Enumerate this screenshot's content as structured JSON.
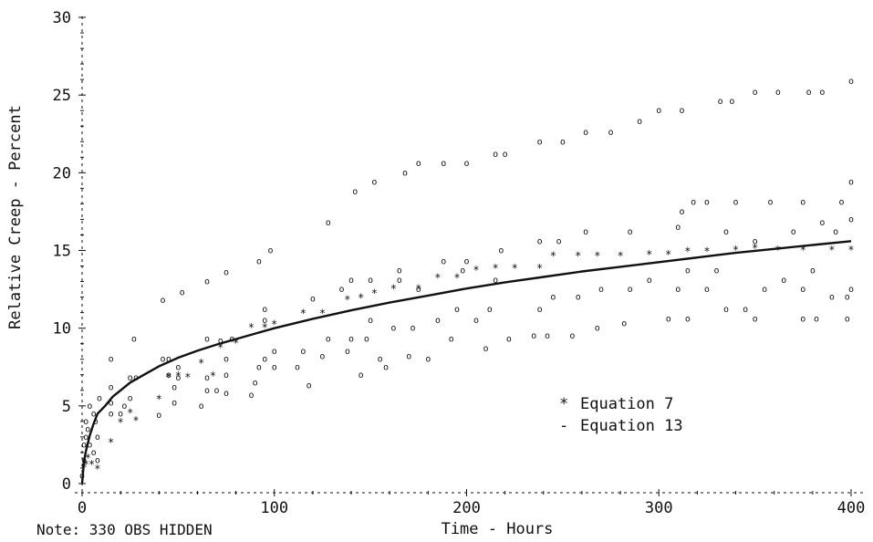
{
  "chart_data": {
    "type": "scatter",
    "xlabel": "Time - Hours",
    "ylabel": "Relative Creep - Percent",
    "xlim": [
      0,
      400
    ],
    "ylim": [
      0,
      30
    ],
    "x_ticks": [
      "0",
      "100",
      "200",
      "300",
      "400"
    ],
    "y_ticks": [
      "0",
      "5",
      "10",
      "15",
      "20",
      "25",
      "30"
    ],
    "note": "Note: 330 OBS HIDDEN",
    "legend_position": "center-right",
    "grid": false,
    "series": [
      {
        "name": "Equation 7",
        "marker": "*",
        "points": [
          [
            1,
            1.1
          ],
          [
            2,
            1.3
          ],
          [
            3,
            1.7
          ],
          [
            5,
            1.3
          ],
          [
            8,
            1.0
          ],
          [
            15,
            2.7
          ],
          [
            20,
            4.0
          ],
          [
            25,
            4.6
          ],
          [
            28,
            4.1
          ],
          [
            40,
            5.5
          ],
          [
            45,
            6.9
          ],
          [
            50,
            7.0
          ],
          [
            55,
            6.9
          ],
          [
            62,
            7.8
          ],
          [
            68,
            7.0
          ],
          [
            72,
            8.8
          ],
          [
            80,
            9.1
          ],
          [
            88,
            10.1
          ],
          [
            95,
            10.1
          ],
          [
            100,
            10.3
          ],
          [
            115,
            11.0
          ],
          [
            125,
            11.0
          ],
          [
            138,
            11.9
          ],
          [
            145,
            12.0
          ],
          [
            152,
            12.3
          ],
          [
            162,
            12.6
          ],
          [
            175,
            12.6
          ],
          [
            185,
            13.3
          ],
          [
            195,
            13.3
          ],
          [
            205,
            13.8
          ],
          [
            215,
            13.9
          ],
          [
            225,
            13.9
          ],
          [
            238,
            13.9
          ],
          [
            245,
            14.7
          ],
          [
            258,
            14.7
          ],
          [
            268,
            14.7
          ],
          [
            280,
            14.7
          ],
          [
            295,
            14.8
          ],
          [
            305,
            14.8
          ],
          [
            315,
            15.0
          ],
          [
            325,
            15.0
          ],
          [
            340,
            15.1
          ],
          [
            350,
            15.2
          ],
          [
            362,
            15.1
          ],
          [
            375,
            15.1
          ],
          [
            390,
            15.1
          ],
          [
            400,
            15.1
          ]
        ]
      },
      {
        "name": "Equation 13",
        "marker": "line",
        "x": [
          0,
          1,
          2,
          4,
          6,
          8,
          12,
          16,
          20,
          25,
          30,
          40,
          50,
          60,
          70,
          80,
          90,
          100,
          120,
          140,
          160,
          180,
          200,
          220,
          240,
          260,
          280,
          300,
          320,
          340,
          360,
          380,
          400
        ],
        "y": [
          0,
          1.45,
          2.1,
          3.1,
          3.85,
          4.5,
          5.0,
          5.6,
          6.0,
          6.5,
          6.85,
          7.55,
          8.1,
          8.55,
          8.95,
          9.3,
          9.65,
          10.0,
          10.6,
          11.15,
          11.65,
          12.1,
          12.55,
          12.95,
          13.3,
          13.65,
          13.95,
          14.25,
          14.55,
          14.85,
          15.1,
          15.35,
          15.6
        ]
      },
      {
        "marker": "o",
        "points": [
          [
            0,
            0.5
          ],
          [
            1,
            1.5
          ],
          [
            1,
            2.5
          ],
          [
            2,
            3.0
          ],
          [
            3,
            3.5
          ],
          [
            2,
            4.0
          ],
          [
            4,
            5.0
          ],
          [
            6,
            4.5
          ],
          [
            7,
            4.0
          ],
          [
            8,
            3.0
          ],
          [
            9,
            5.5
          ],
          [
            4,
            2.5
          ],
          [
            6,
            2.0
          ],
          [
            8,
            1.5
          ],
          [
            15,
            8.0
          ],
          [
            15,
            6.2
          ],
          [
            15,
            5.2
          ],
          [
            15,
            4.5
          ],
          [
            20,
            4.5
          ],
          [
            22,
            5.0
          ],
          [
            25,
            6.8
          ],
          [
            25,
            5.5
          ],
          [
            28,
            6.8
          ],
          [
            27,
            9.3
          ],
          [
            40,
            4.4
          ],
          [
            42,
            8.0
          ],
          [
            42,
            11.8
          ],
          [
            45,
            8.0
          ],
          [
            45,
            7.0
          ],
          [
            48,
            5.2
          ],
          [
            48,
            6.2
          ],
          [
            50,
            6.8
          ],
          [
            50,
            7.5
          ],
          [
            52,
            12.3
          ],
          [
            62,
            5.0
          ],
          [
            65,
            6.0
          ],
          [
            65,
            6.8
          ],
          [
            65,
            9.3
          ],
          [
            65,
            13.0
          ],
          [
            70,
            6.0
          ],
          [
            72,
            9.2
          ],
          [
            75,
            5.8
          ],
          [
            75,
            7.0
          ],
          [
            75,
            8.0
          ],
          [
            75,
            13.6
          ],
          [
            78,
            9.3
          ],
          [
            88,
            5.7
          ],
          [
            90,
            6.5
          ],
          [
            92,
            7.5
          ],
          [
            92,
            14.3
          ],
          [
            95,
            8.0
          ],
          [
            95,
            10.5
          ],
          [
            95,
            11.2
          ],
          [
            98,
            15.0
          ],
          [
            100,
            7.5
          ],
          [
            100,
            8.5
          ],
          [
            112,
            7.5
          ],
          [
            115,
            8.5
          ],
          [
            118,
            6.3
          ],
          [
            120,
            11.9
          ],
          [
            125,
            8.2
          ],
          [
            128,
            9.3
          ],
          [
            128,
            16.8
          ],
          [
            135,
            12.5
          ],
          [
            138,
            8.5
          ],
          [
            140,
            9.3
          ],
          [
            140,
            13.1
          ],
          [
            142,
            18.8
          ],
          [
            145,
            7.0
          ],
          [
            148,
            9.3
          ],
          [
            150,
            10.5
          ],
          [
            150,
            13.1
          ],
          [
            152,
            19.4
          ],
          [
            155,
            8.0
          ],
          [
            158,
            7.5
          ],
          [
            162,
            10.0
          ],
          [
            165,
            13.1
          ],
          [
            165,
            13.7
          ],
          [
            168,
            20.0
          ],
          [
            170,
            8.2
          ],
          [
            172,
            10.0
          ],
          [
            175,
            20.6
          ],
          [
            175,
            12.5
          ],
          [
            180,
            8.0
          ],
          [
            185,
            10.5
          ],
          [
            188,
            14.3
          ],
          [
            188,
            20.6
          ],
          [
            192,
            9.3
          ],
          [
            195,
            11.2
          ],
          [
            198,
            13.7
          ],
          [
            200,
            14.3
          ],
          [
            200,
            20.6
          ],
          [
            205,
            10.5
          ],
          [
            210,
            8.7
          ],
          [
            212,
            11.2
          ],
          [
            215,
            13.1
          ],
          [
            215,
            21.2
          ],
          [
            218,
            15.0
          ],
          [
            220,
            21.2
          ],
          [
            222,
            9.3
          ],
          [
            235,
            9.5
          ],
          [
            238,
            11.2
          ],
          [
            238,
            15.6
          ],
          [
            238,
            22.0
          ],
          [
            242,
            9.5
          ],
          [
            245,
            12.0
          ],
          [
            248,
            15.6
          ],
          [
            250,
            22.0
          ],
          [
            255,
            9.5
          ],
          [
            258,
            12.0
          ],
          [
            262,
            16.2
          ],
          [
            262,
            22.6
          ],
          [
            268,
            10.0
          ],
          [
            270,
            12.5
          ],
          [
            275,
            22.6
          ],
          [
            282,
            10.3
          ],
          [
            285,
            12.5
          ],
          [
            285,
            16.2
          ],
          [
            290,
            23.3
          ],
          [
            295,
            13.1
          ],
          [
            300,
            24.0
          ],
          [
            305,
            10.6
          ],
          [
            310,
            12.5
          ],
          [
            310,
            16.5
          ],
          [
            312,
            17.5
          ],
          [
            312,
            24.0
          ],
          [
            315,
            10.6
          ],
          [
            315,
            13.7
          ],
          [
            318,
            18.1
          ],
          [
            325,
            12.5
          ],
          [
            325,
            18.1
          ],
          [
            330,
            13.7
          ],
          [
            332,
            24.6
          ],
          [
            335,
            11.2
          ],
          [
            335,
            16.2
          ],
          [
            338,
            24.6
          ],
          [
            340,
            18.1
          ],
          [
            345,
            11.2
          ],
          [
            350,
            10.6
          ],
          [
            350,
            15.6
          ],
          [
            350,
            25.2
          ],
          [
            355,
            12.5
          ],
          [
            358,
            18.1
          ],
          [
            362,
            25.2
          ],
          [
            365,
            13.1
          ],
          [
            370,
            16.2
          ],
          [
            375,
            10.6
          ],
          [
            375,
            12.5
          ],
          [
            375,
            18.1
          ],
          [
            378,
            25.2
          ],
          [
            380,
            13.7
          ],
          [
            382,
            10.6
          ],
          [
            385,
            16.8
          ],
          [
            385,
            25.2
          ],
          [
            390,
            12.0
          ],
          [
            392,
            16.2
          ],
          [
            395,
            18.1
          ],
          [
            398,
            12.0
          ],
          [
            398,
            10.6
          ],
          [
            400,
            19.4
          ],
          [
            400,
            17.0
          ],
          [
            400,
            25.9
          ],
          [
            400,
            12.5
          ]
        ]
      }
    ]
  }
}
